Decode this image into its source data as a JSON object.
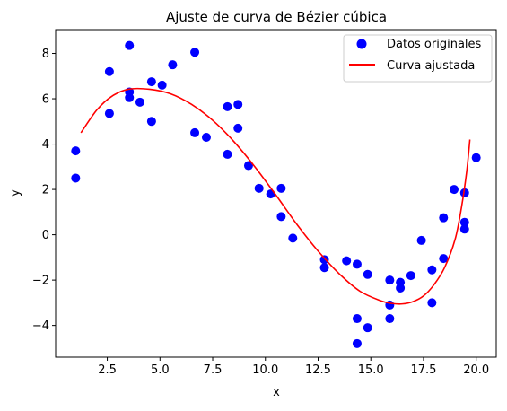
{
  "chart_data": {
    "type": "scatter",
    "title": "Ajuste de curva de Bézier cúbica",
    "xlabel": "x",
    "ylabel": "y",
    "xlim": [
      0.05,
      20.95
    ],
    "ylim": [
      -5.4,
      9.05
    ],
    "xticks": [
      2.5,
      5.0,
      7.5,
      10.0,
      12.5,
      15.0,
      17.5,
      20.0
    ],
    "xtick_labels": [
      "2.5",
      "5.0",
      "7.5",
      "10.0",
      "12.5",
      "15.0",
      "17.5",
      "20.0"
    ],
    "yticks": [
      -4,
      -2,
      0,
      2,
      4,
      6,
      8
    ],
    "ytick_labels": [
      "−4",
      "−2",
      "0",
      "2",
      "4",
      "6",
      "8"
    ],
    "grid": false,
    "legend_position": "top-right",
    "legend": [
      "Datos originales",
      "Curva ajustada"
    ],
    "colors": {
      "points": "#0000ff",
      "curve": "#ff0000",
      "axes": "#000000"
    },
    "scatter": [
      [
        1.0,
        3.7
      ],
      [
        1.0,
        2.5
      ],
      [
        2.6,
        7.2
      ],
      [
        2.6,
        5.35
      ],
      [
        3.55,
        8.35
      ],
      [
        3.55,
        6.3
      ],
      [
        3.55,
        6.05
      ],
      [
        4.05,
        5.85
      ],
      [
        4.6,
        6.75
      ],
      [
        4.6,
        5.0
      ],
      [
        5.1,
        6.6
      ],
      [
        5.6,
        7.5
      ],
      [
        6.65,
        8.05
      ],
      [
        6.65,
        4.5
      ],
      [
        7.2,
        4.3
      ],
      [
        8.2,
        5.65
      ],
      [
        8.2,
        3.55
      ],
      [
        8.7,
        5.75
      ],
      [
        8.7,
        4.7
      ],
      [
        9.2,
        3.05
      ],
      [
        9.7,
        2.05
      ],
      [
        10.25,
        1.8
      ],
      [
        10.75,
        2.05
      ],
      [
        10.75,
        0.8
      ],
      [
        11.3,
        -0.15
      ],
      [
        12.8,
        -1.1
      ],
      [
        12.8,
        -1.45
      ],
      [
        13.85,
        -1.15
      ],
      [
        14.35,
        -1.3
      ],
      [
        14.35,
        -3.7
      ],
      [
        14.35,
        -4.8
      ],
      [
        14.85,
        -1.75
      ],
      [
        14.85,
        -4.1
      ],
      [
        15.9,
        -2.0
      ],
      [
        15.9,
        -3.1
      ],
      [
        15.9,
        -3.7
      ],
      [
        16.4,
        -2.1
      ],
      [
        16.4,
        -2.35
      ],
      [
        16.9,
        -1.8
      ],
      [
        17.4,
        -0.25
      ],
      [
        17.9,
        -1.55
      ],
      [
        17.9,
        -3.0
      ],
      [
        18.45,
        0.75
      ],
      [
        18.45,
        -1.05
      ],
      [
        18.95,
        2.0
      ],
      [
        19.45,
        1.85
      ],
      [
        19.45,
        0.55
      ],
      [
        19.45,
        0.25
      ],
      [
        20.0,
        3.4
      ]
    ],
    "curve": [
      [
        1.25,
        4.5
      ],
      [
        2.0,
        5.5
      ],
      [
        2.7,
        6.1
      ],
      [
        3.5,
        6.42
      ],
      [
        4.5,
        6.42
      ],
      [
        5.5,
        6.22
      ],
      [
        6.5,
        5.75
      ],
      [
        7.5,
        5.05
      ],
      [
        8.5,
        4.12
      ],
      [
        9.5,
        3.0
      ],
      [
        10.5,
        1.75
      ],
      [
        11.5,
        0.45
      ],
      [
        12.5,
        -0.72
      ],
      [
        13.5,
        -1.72
      ],
      [
        14.5,
        -2.5
      ],
      [
        15.5,
        -2.92
      ],
      [
        16.0,
        -3.03
      ],
      [
        16.5,
        -3.05
      ],
      [
        17.0,
        -2.95
      ],
      [
        17.5,
        -2.7
      ],
      [
        18.0,
        -2.2
      ],
      [
        18.5,
        -1.45
      ],
      [
        19.0,
        -0.2
      ],
      [
        19.3,
        1.2
      ],
      [
        19.55,
        2.8
      ],
      [
        19.7,
        4.2
      ]
    ]
  }
}
